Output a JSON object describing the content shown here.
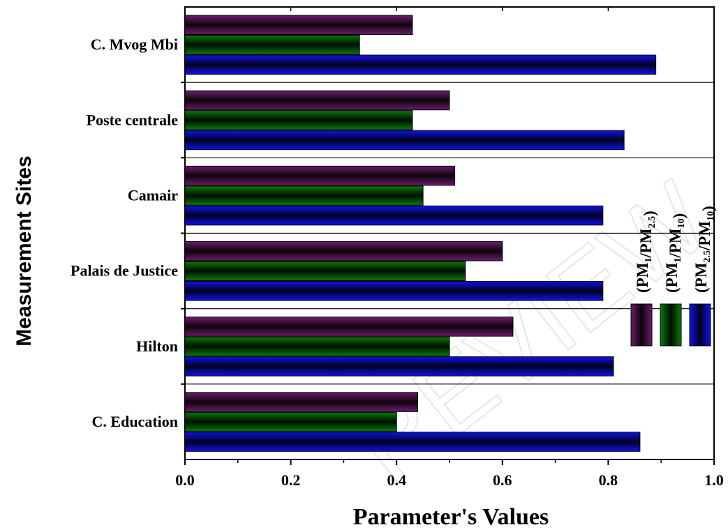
{
  "watermark": "REVIEW",
  "chart_data": {
    "type": "bar",
    "orientation": "horizontal",
    "xlabel": "Parameter's Values",
    "ylabel": "Measurement Sites",
    "xlim": [
      0.0,
      1.0
    ],
    "x_ticks": [
      "0.0",
      "0.2",
      "0.4",
      "0.6",
      "0.8",
      "1.0"
    ],
    "x_tick_values": [
      0,
      0.2,
      0.4,
      0.6,
      0.8,
      1.0
    ],
    "categories": [
      "C. Mvog Mbi",
      "Poste centrale",
      "Camair",
      "Palais de Justice",
      "Hilton",
      "C. Education"
    ],
    "series": [
      {
        "name": "(PM1/PM2.5)",
        "legend": {
          "open": "(PM",
          "a": "1",
          "mid": "/PM",
          "b": "2.5",
          "close": ")"
        },
        "color": "#6B1D6B",
        "values": [
          0.43,
          0.5,
          0.51,
          0.6,
          0.62,
          0.44
        ]
      },
      {
        "name": "(PM1/PM10)",
        "legend": {
          "open": "(PM",
          "a": "1",
          "mid": "/PM",
          "b": "10",
          "close": ")"
        },
        "color": "#0A7A0A",
        "values": [
          0.33,
          0.43,
          0.45,
          0.53,
          0.5,
          0.4
        ]
      },
      {
        "name": "(PM2.5/PM10)",
        "legend": {
          "open": "(PM",
          "a": "2.5",
          "mid": "/PM",
          "b": "10",
          "close": ")"
        },
        "color": "#1010EE",
        "values": [
          0.89,
          0.83,
          0.79,
          0.79,
          0.81,
          0.86
        ]
      }
    ],
    "legend_position": "right"
  }
}
